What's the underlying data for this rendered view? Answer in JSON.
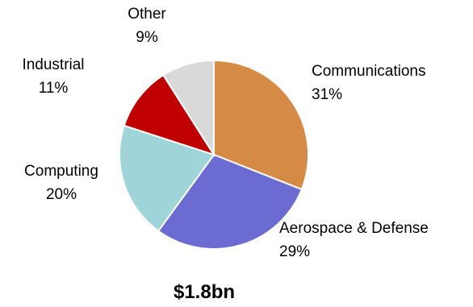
{
  "chart_data": {
    "type": "pie",
    "title": "",
    "total_label": "$1.8bn",
    "slices": [
      {
        "name": "Communications",
        "value": 31,
        "value_label": "31%",
        "color": "#d58b45"
      },
      {
        "name": "Aerospace & Defense",
        "value": 29,
        "value_label": "29%",
        "color": "#6b6bd1"
      },
      {
        "name": "Computing",
        "value": 20,
        "value_label": "20%",
        "color": "#9fd4d8"
      },
      {
        "name": "Industrial",
        "value": 11,
        "value_label": "11%",
        "color": "#c00000"
      },
      {
        "name": "Other",
        "value": 9,
        "value_label": "9%",
        "color": "#d9d9d9"
      }
    ],
    "start_angle_deg": 0,
    "direction": "clockwise",
    "legend": "none"
  }
}
